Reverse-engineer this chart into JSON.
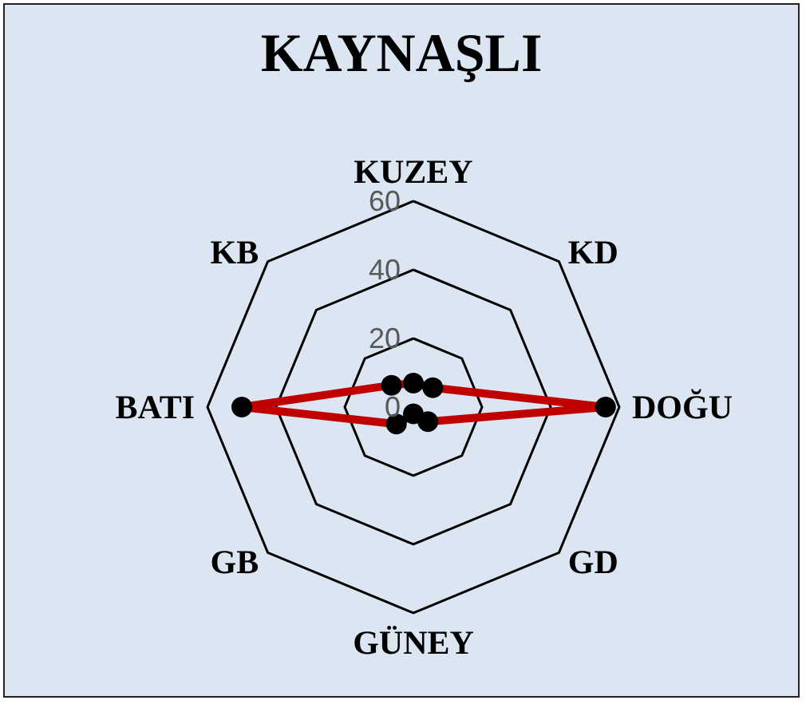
{
  "chart_data": {
    "type": "radar",
    "title": "KAYNAŞLI",
    "categories": [
      "KUZEY",
      "KD",
      "DOĞU",
      "GD",
      "GÜNEY",
      "GB",
      "BATI",
      "KB"
    ],
    "series": [
      {
        "color": "#c00000",
        "values": [
          7,
          8,
          56,
          6,
          2,
          7,
          50,
          9
        ]
      }
    ],
    "ylim": [
      0,
      60
    ],
    "yticks": [
      0,
      20,
      40,
      60
    ],
    "grid": true,
    "marker": "circle",
    "line_style": "solid"
  }
}
